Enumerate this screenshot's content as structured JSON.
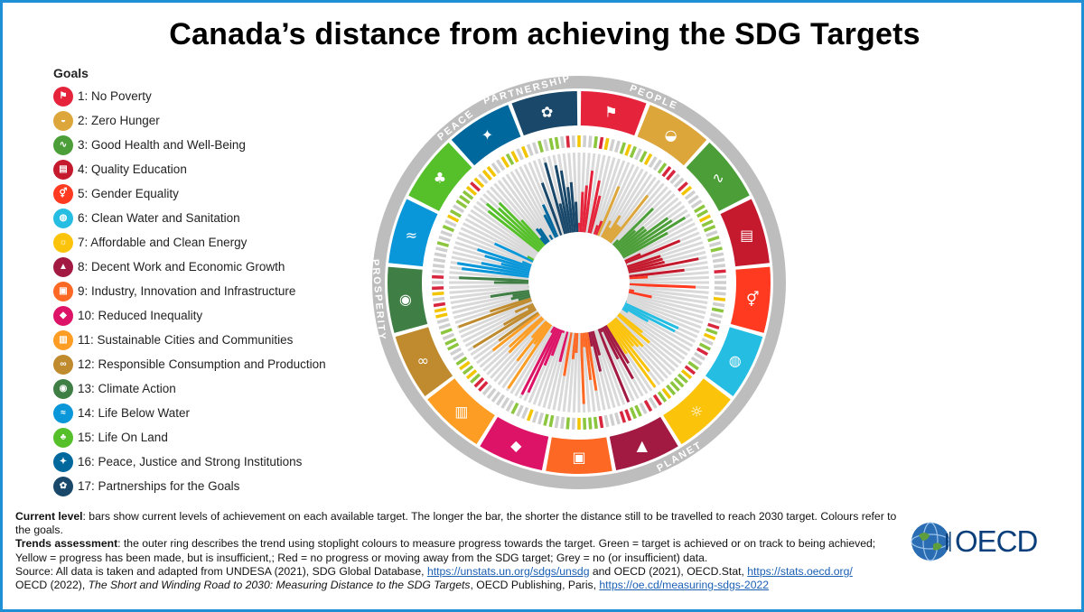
{
  "title": "Canada’s distance from achieving the SDG Targets",
  "legend": {
    "heading": "Goals",
    "goals": [
      {
        "label": "1: No Poverty",
        "color": "#e5243b",
        "icon": "people-icon"
      },
      {
        "label": "2: Zero Hunger",
        "color": "#dda63a",
        "icon": "bowl-icon"
      },
      {
        "label": "3: Good Health and Well-Being",
        "color": "#4c9f38",
        "icon": "heartbeat-icon"
      },
      {
        "label": "4: Quality Education",
        "color": "#c5192d",
        "icon": "book-icon"
      },
      {
        "label": "5: Gender Equality",
        "color": "#ff3a21",
        "icon": "gender-icon"
      },
      {
        "label": "6: Clean Water and Sanitation",
        "color": "#26bde2",
        "icon": "water-icon"
      },
      {
        "label": "7: Affordable and Clean Energy",
        "color": "#fcc30b",
        "icon": "sun-icon"
      },
      {
        "label": "8: Decent Work and Economic Growth",
        "color": "#a21942",
        "icon": "growth-chart-icon"
      },
      {
        "label": "9: Industry, Innovation and Infrastructure",
        "color": "#fd6925",
        "icon": "cubes-icon"
      },
      {
        "label": "10: Reduced Inequality",
        "color": "#dd1367",
        "icon": "equal-icon"
      },
      {
        "label": "11: Sustainable Cities and Communities",
        "color": "#fd9d24",
        "icon": "city-icon"
      },
      {
        "label": "12: Responsible Consumption and Production",
        "color": "#bf8b2e",
        "icon": "infinity-icon"
      },
      {
        "label": "13: Climate Action",
        "color": "#3f7e44",
        "icon": "eye-globe-icon"
      },
      {
        "label": "14: Life Below Water",
        "color": "#0a97d9",
        "icon": "fish-icon"
      },
      {
        "label": "15: Life On Land",
        "color": "#56c02b",
        "icon": "tree-icon"
      },
      {
        "label": "16: Peace, Justice and Strong Institutions",
        "color": "#00689d",
        "icon": "dove-icon"
      },
      {
        "label": "17: Partnerships for the Goals",
        "color": "#19486a",
        "icon": "flower-icon"
      }
    ]
  },
  "wheel": {
    "ring_labels": [
      "PEOPLE",
      "PLANET",
      "PROSPERITY",
      "PEACE",
      "PARTNERSHIP"
    ],
    "ring_color": "#bdbdbd",
    "trend_colors": {
      "green": "#8cc63f",
      "yellow": "#f2c500",
      "red": "#d7263d",
      "grey": "#cfcfcf"
    }
  },
  "notes": {
    "current_label": "Current level",
    "current_text": ": bars show current levels of achievement on each available target. The longer the bar, the shorter the distance still to be travelled to reach 2030 target. Colours refer to the goals.",
    "trends_label": "Trends assessment",
    "trends_text": ": the outer ring describes the trend using stoplight colours to measure progress towards the target. Green = target is achieved or on track to being achieved; Yellow = progress has been made, but is insufficient,; Red = no progress or moving away from the SDG target; Grey = no (or insufficient) data.",
    "source_prefix": "Source: All data is taken and adapted from UNDESA (2021), SDG Global Database, ",
    "source_link1": "https://unstats.un.org/sdgs/unsdg",
    "source_mid": " and OECD (2021), ",
    "source_oecdstat": "OECD.Stat",
    "source_sep": ", ",
    "source_link2": "https://stats.oecd.org/",
    "ref_prefix": "OECD (2022), ",
    "ref_title": "The Short and Winding Road to 2030: Measuring Distance to the SDG Targets",
    "ref_suffix": ", OECD Publishing, Paris, ",
    "ref_link": "https://oe.cd/measuring-sdgs-2022"
  },
  "logo": {
    "text": "OECD"
  }
}
